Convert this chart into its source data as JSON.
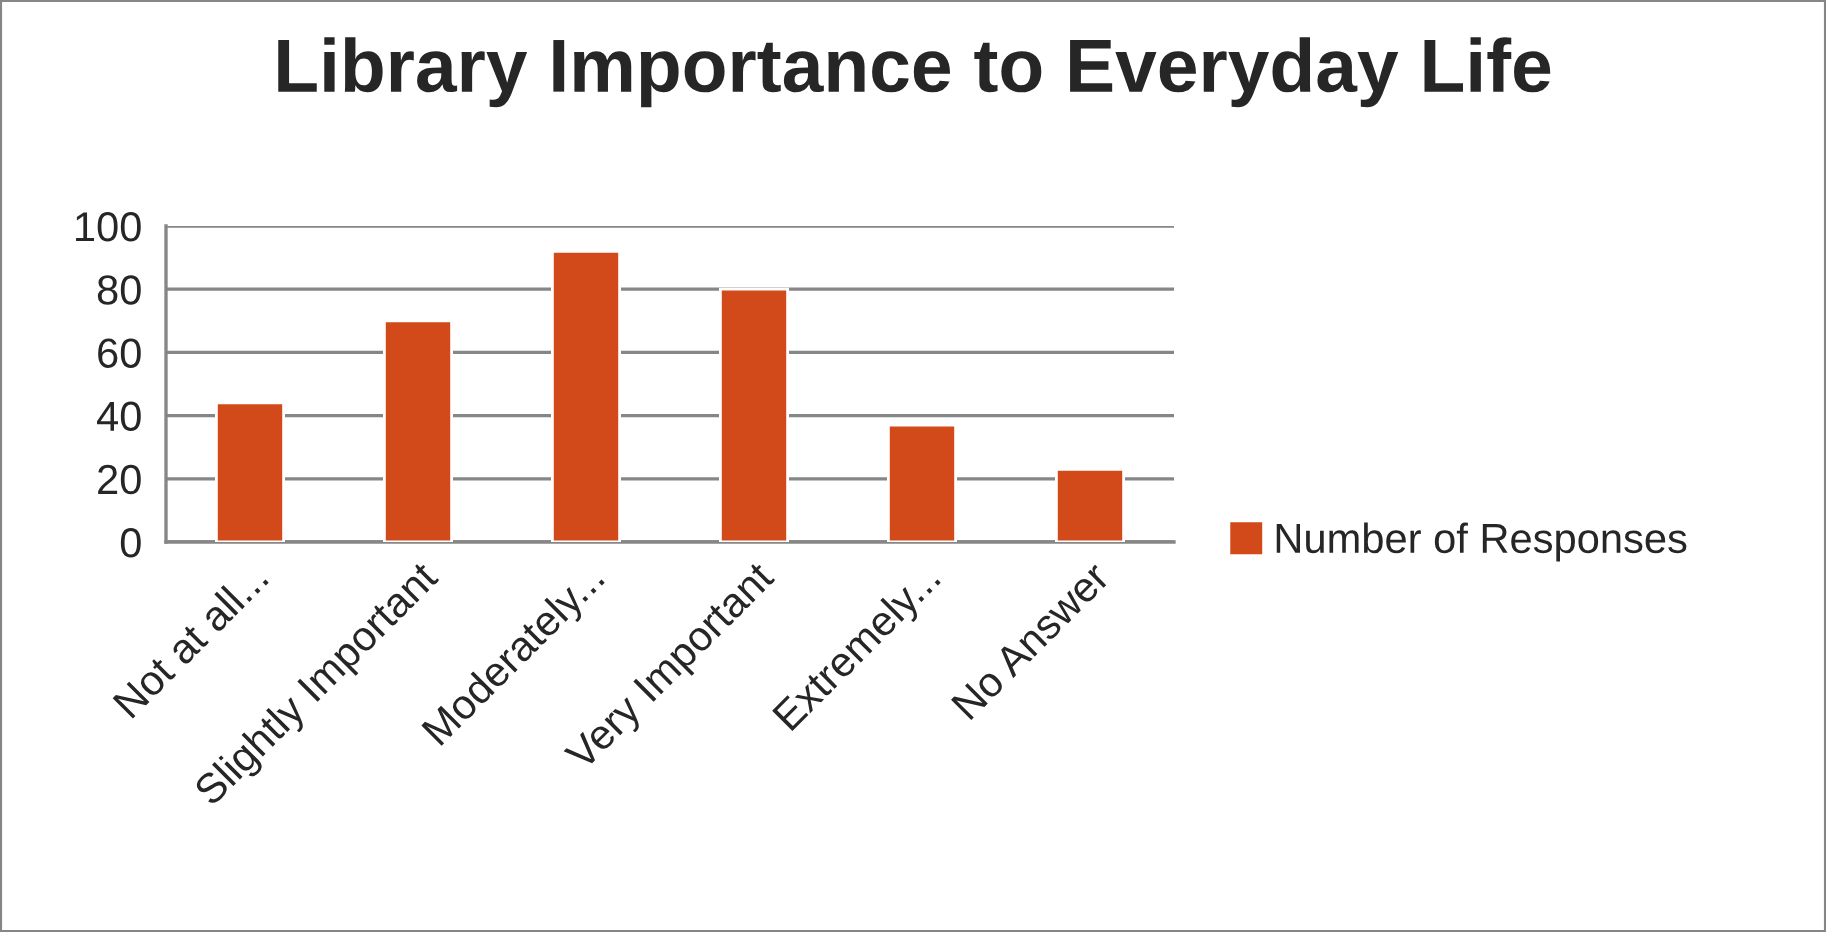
{
  "chart_data": {
    "type": "bar",
    "title": "Library Importance to Everyday Life",
    "categories": [
      "Not at all...",
      "Slightly Important",
      "Moderately...",
      "Very Important",
      "Extremely...",
      "No Answer"
    ],
    "series": [
      {
        "name": "Number of Responses",
        "color": "#d24a19",
        "values": [
          44,
          70,
          92,
          80,
          37,
          23
        ]
      }
    ],
    "ylim": [
      0,
      100
    ],
    "yticks": [
      0,
      20,
      40,
      60,
      80,
      100
    ],
    "grid": "y",
    "legend": "right"
  }
}
